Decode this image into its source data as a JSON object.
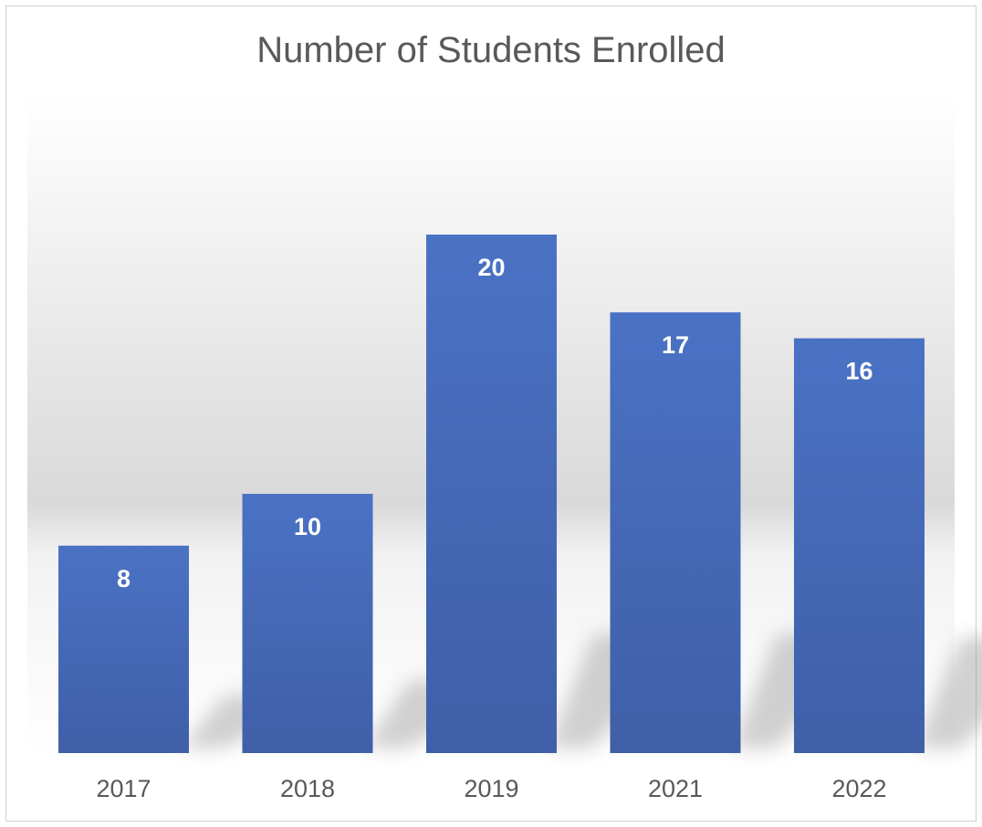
{
  "chart_data": {
    "type": "bar",
    "title": "Number of Students Enrolled",
    "xlabel": "",
    "ylabel": "",
    "categories": [
      "2017",
      "2018",
      "2019",
      "2021",
      "2022"
    ],
    "values": [
      8,
      10,
      20,
      17,
      16
    ],
    "ylim": [
      0,
      22
    ],
    "grid": false,
    "legend": "none",
    "data_labels": "inside-end",
    "bar_color": "#4a72c4",
    "bar_color_dark": "#3f5fa8",
    "label_color": "#ffffff",
    "title_color": "#595959",
    "tick_color": "#595959"
  }
}
